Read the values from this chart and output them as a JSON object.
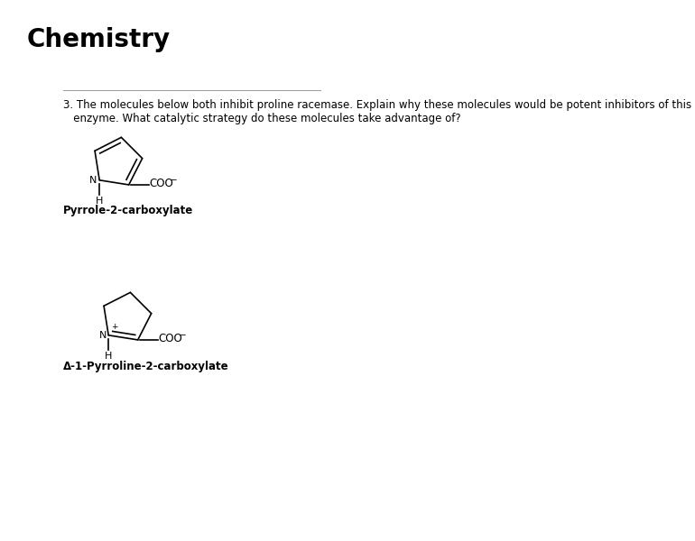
{
  "title": "Chemistry",
  "title_fontsize": 20,
  "title_fontweight": "bold",
  "background_color": "#ffffff",
  "question_text_line1": "3. The molecules below both inhibit proline racemase. Explain why these molecules would be potent inhibitors of this",
  "question_text_line2": "   enzyme. What catalytic strategy do these molecules take advantage of?",
  "question_fontsize": 8.5,
  "label1": "Pyrrole-2-carboxylate",
  "label1_fontsize": 8.5,
  "label1_fontweight": "bold",
  "label2": "Δ-1-Pyrroline-2-carboxylate",
  "label2_fontsize": 8.5,
  "label2_fontweight": "bold",
  "line_color": "#000000",
  "line_width": 1.2,
  "separator_color": "#999999",
  "separator_lw": 0.7
}
